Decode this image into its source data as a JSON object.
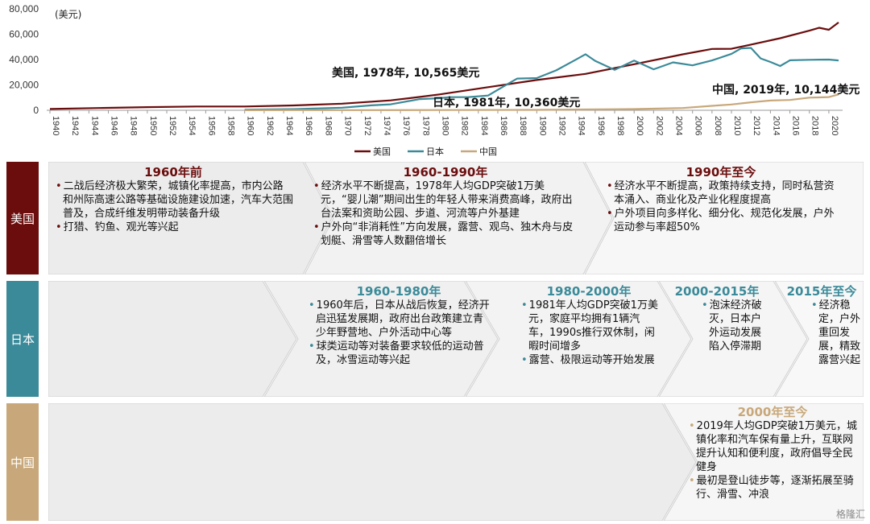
{
  "chart_data": {
    "type": "line",
    "unit_label": "(美元)",
    "yticks": [
      "0",
      "20,000",
      "40,000",
      "60,000",
      "80,000"
    ],
    "ylim": [
      0,
      80000
    ],
    "xlim": [
      1940,
      2021
    ],
    "xtick_years": [
      1940,
      1942,
      1944,
      1946,
      1948,
      1950,
      1952,
      1954,
      1956,
      1958,
      1960,
      1962,
      1964,
      1966,
      1968,
      1970,
      1972,
      1974,
      1976,
      1978,
      1980,
      1982,
      1984,
      1986,
      1988,
      1990,
      1992,
      1994,
      1996,
      1998,
      2000,
      2002,
      2004,
      2006,
      2008,
      2010,
      2012,
      2014,
      2016,
      2018,
      2020
    ],
    "legend_position": "bottom",
    "series": [
      {
        "name": "美国",
        "color": "#6b0d0d",
        "x": [
          1940,
          1945,
          1950,
          1955,
          1960,
          1965,
          1970,
          1975,
          1978,
          1980,
          1985,
          1990,
          1995,
          2000,
          2005,
          2008,
          2010,
          2012,
          2015,
          2018,
          2019,
          2020,
          2021
        ],
        "y": [
          1000,
          1800,
          2500,
          3000,
          3000,
          3800,
          5200,
          7800,
          10565,
          12500,
          18200,
          23900,
          28700,
          36300,
          44100,
          48400,
          48500,
          51800,
          56800,
          62800,
          65100,
          63500,
          69300
        ]
      },
      {
        "name": "日本",
        "color": "#3b8a99",
        "x": [
          1960,
          1965,
          1970,
          1973,
          1975,
          1978,
          1980,
          1981,
          1983,
          1985,
          1987,
          1988,
          1990,
          1992,
          1994,
          1995,
          1996,
          1998,
          2000,
          2002,
          2004,
          2006,
          2008,
          2010,
          2011,
          2012,
          2013,
          2014,
          2015,
          2016,
          2018,
          2020,
          2021
        ],
        "y": [
          500,
          900,
          2000,
          3900,
          4700,
          8800,
          9500,
          10360,
          10400,
          11600,
          20700,
          25000,
          25400,
          31500,
          39900,
          44200,
          39000,
          31900,
          39200,
          32300,
          37800,
          35400,
          39300,
          44500,
          48800,
          49200,
          40900,
          38100,
          34900,
          39400,
          39800,
          40000,
          39300
        ]
      },
      {
        "name": "中国",
        "color": "#c8a87a",
        "x": [
          1960,
          1970,
          1980,
          1990,
          1995,
          2000,
          2005,
          2008,
          2010,
          2012,
          2014,
          2016,
          2018,
          2019,
          2020,
          2021
        ],
        "y": [
          90,
          110,
          195,
          320,
          610,
          960,
          1750,
          3470,
          4550,
          6300,
          7680,
          8100,
          9980,
          10144,
          10400,
          12500
        ]
      }
    ],
    "annotations": [
      {
        "text": "美国, 1978年, 10,565美元"
      },
      {
        "text": "日本, 1981年, 10,360美元"
      },
      {
        "text": "中国, 2019年, 10,144美元"
      }
    ]
  },
  "rows": [
    {
      "label": "美国",
      "color": "#6b0d0d",
      "phases": [
        {
          "title": "1960年前",
          "bullets": [
            "二战后经济极大繁荣，城镇化率提高，市内公路和州际高速公路等基础设施建设加速，汽车大范围普及，合成纤维发明带动装备升级",
            "打猎、钓鱼、观光等兴起"
          ]
        },
        {
          "title": "1960-1990年",
          "bullets": [
            "经济水平不断提高，1978年人均GDP突破1万美元，“婴儿潮”期间出生的年轻人带来消费高峰，政府出台法案和资助公园、步道、河流等户外基建",
            "户外向“非消耗性”方向发展，露营、观鸟、独木舟与皮划艇、滑雪等人数翻倍增长"
          ]
        },
        {
          "title": "1990年至今",
          "bullets": [
            "经济水平不断提高，政策持续支持，同时私营资本涌入、商业化及产业化程度提高",
            "户外项目向多样化、细分化、规范化发展，户外运动参与率超50%"
          ]
        }
      ]
    },
    {
      "label": "日本",
      "color": "#3b8a99",
      "phases": [
        {
          "title": "1960-1980年",
          "bullets": [
            "1960年后，日本从战后恢复，经济开启迅猛发展期，政府出台政策建立青少年野营地、户外活动中心等",
            "球类运动等对装备要求较低的运动普及，冰雪运动等兴起"
          ]
        },
        {
          "title": "1980-2000年",
          "bullets": [
            "1981年人均GDP突破1万美元，家庭平均拥有1辆汽车，1990s推行双休制，闲暇时间增多",
            "露营、极限运动等开始发展"
          ]
        },
        {
          "title": "2000-2015年",
          "bullets": [
            "泡沫经济破灭，日本户外运动发展陷入停滞期"
          ]
        },
        {
          "title": "2015年至今",
          "bullets": [
            "经济稳定，户外重回发展，精致露营兴起"
          ]
        }
      ]
    },
    {
      "label": "中国",
      "color": "#c8a87a",
      "phases": [
        {
          "title": "2000年至今",
          "bullets": [
            "2019年人均GDP突破1万美元，城镇化率和汽车保有量上升，互联网提升认知和便利度，政府倡导全民健身",
            "最初是登山徒步等，逐渐拓展至骑行、滑雪、冲浪"
          ]
        }
      ]
    }
  ],
  "watermark": "格隆汇"
}
